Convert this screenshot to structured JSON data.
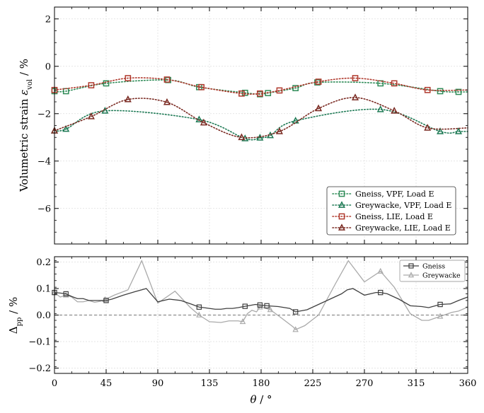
{
  "chart_data": [
    {
      "type": "line",
      "panel": "top",
      "xlim": [
        0,
        360
      ],
      "ylim": [
        -7.5,
        2.5
      ],
      "yticks": [
        2,
        0,
        -2,
        -4,
        -6
      ],
      "ytick_labels": [
        "2",
        "0",
        "−2",
        "−4",
        "−6"
      ],
      "ylabel": "Volumetric strain εvol / %",
      "ylabel_main": "Volumetric strain ",
      "ylabel_symbol": "ε",
      "ylabel_sub": "vol",
      "ylabel_unit": " / %",
      "grid": true,
      "legend_position": "lower-right",
      "series": [
        {
          "name": "Gneiss, VPF, Load E",
          "color": "#2e8b57",
          "marker": "square",
          "x": [
            0,
            10,
            45,
            99,
            126,
            166,
            179,
            186,
            210,
            229,
            284,
            336,
            352
          ],
          "y": [
            -1.05,
            -1.05,
            -0.72,
            -0.58,
            -0.88,
            -1.12,
            -1.18,
            -1.13,
            -0.92,
            -0.68,
            -0.72,
            -1.05,
            -1.08
          ]
        },
        {
          "name": "Greywacke, VPF, Load E",
          "color": "#1e7a55",
          "marker": "triangle",
          "x": [
            0,
            10,
            44,
            126,
            166,
            179,
            188,
            210,
            284,
            336,
            352
          ],
          "y": [
            -2.72,
            -2.65,
            -1.88,
            -2.25,
            -3.05,
            -3.02,
            -2.92,
            -2.3,
            -1.82,
            -2.75,
            -2.75
          ]
        },
        {
          "name": "Gneiss, LIE, Load E",
          "color": "#b03a2e",
          "marker": "square",
          "x": [
            0,
            32,
            64,
            98,
            128,
            163,
            179,
            196,
            230,
            262,
            296,
            325
          ],
          "y": [
            -1.0,
            -0.8,
            -0.5,
            -0.56,
            -0.88,
            -1.15,
            -1.15,
            -1.02,
            -0.65,
            -0.5,
            -0.72,
            -1.0
          ]
        },
        {
          "name": "Greywacke, LIE, Load E",
          "color": "#7a2a22",
          "marker": "triangle",
          "x": [
            0,
            32,
            64,
            98,
            130,
            163,
            196,
            230,
            262,
            296,
            325
          ],
          "y": [
            -2.72,
            -2.12,
            -1.4,
            -1.52,
            -2.38,
            -3.0,
            -2.75,
            -1.78,
            -1.32,
            -1.88,
            -2.6
          ]
        }
      ]
    },
    {
      "type": "line",
      "panel": "bottom",
      "xlim": [
        0,
        360
      ],
      "ylim": [
        -0.22,
        0.22
      ],
      "yticks": [
        0.2,
        0.1,
        0.0,
        -0.1,
        -0.2
      ],
      "ytick_labels": [
        "0.2",
        "0.1",
        "0.0",
        "−0.1",
        "−0.2"
      ],
      "xticks": [
        0,
        45,
        90,
        135,
        180,
        225,
        270,
        315,
        360
      ],
      "xtick_labels": [
        "0",
        "45",
        "90",
        "135",
        "180",
        "225",
        "270",
        "315",
        "360"
      ],
      "ylabel": "Δpp / %",
      "ylabel_symbol": "Δ",
      "ylabel_sub": "pp",
      "ylabel_unit": " / %",
      "xlabel": "θ / °",
      "xlabel_symbol": "θ",
      "xlabel_unit": " / °",
      "grid": true,
      "reference_line_y": 0.0,
      "legend_position": "top-right",
      "series": [
        {
          "name": "Gneiss",
          "color": "#404040",
          "marker": "square",
          "x": [
            0,
            5,
            10,
            15,
            20,
            25,
            30,
            35,
            40,
            45,
            50,
            60,
            70,
            75,
            80,
            90,
            100,
            110,
            120,
            126,
            130,
            140,
            145,
            150,
            155,
            160,
            166,
            170,
            175,
            179,
            185,
            195,
            205,
            210,
            220,
            230,
            240,
            250,
            255,
            260,
            270,
            280,
            284,
            290,
            300,
            310,
            320,
            326,
            336,
            345,
            352,
            360
          ],
          "y": [
            0.085,
            0.083,
            0.08,
            0.07,
            0.062,
            0.062,
            0.055,
            0.055,
            0.055,
            0.055,
            0.06,
            0.075,
            0.088,
            0.094,
            0.1,
            0.05,
            0.06,
            0.055,
            0.04,
            0.03,
            0.028,
            0.022,
            0.022,
            0.025,
            0.025,
            0.028,
            0.033,
            0.036,
            0.04,
            0.038,
            0.035,
            0.032,
            0.025,
            0.012,
            0.02,
            0.04,
            0.06,
            0.08,
            0.095,
            0.1,
            0.075,
            0.085,
            0.085,
            0.08,
            0.06,
            0.035,
            0.032,
            0.028,
            0.04,
            0.042,
            0.055,
            0.068
          ]
        },
        {
          "name": "Greywacke",
          "color": "#aaaaaa",
          "marker": "triangle",
          "x": [
            0,
            5,
            10,
            15,
            20,
            25,
            30,
            35,
            40,
            44,
            52,
            64,
            76,
            90,
            105,
            118,
            126,
            135,
            145,
            152,
            160,
            164,
            168,
            172,
            176,
            179,
            182,
            188,
            198,
            208,
            210,
            218,
            230,
            245,
            256,
            270,
            284,
            296,
            310,
            320,
            326,
            336,
            346,
            352,
            360
          ],
          "y": [
            0.085,
            0.068,
            0.075,
            0.068,
            0.05,
            0.05,
            0.055,
            0.048,
            0.052,
            0.058,
            0.075,
            0.095,
            0.205,
            0.045,
            0.09,
            0.03,
            0.0,
            -0.025,
            -0.028,
            -0.022,
            -0.022,
            -0.025,
            0.005,
            0.018,
            0.012,
            0.03,
            0.028,
            0.02,
            -0.012,
            -0.045,
            -0.055,
            -0.04,
            0.0,
            0.12,
            0.205,
            0.125,
            0.165,
            0.105,
            0.005,
            -0.02,
            -0.02,
            -0.005,
            0.01,
            0.015,
            0.03
          ]
        }
      ]
    }
  ]
}
